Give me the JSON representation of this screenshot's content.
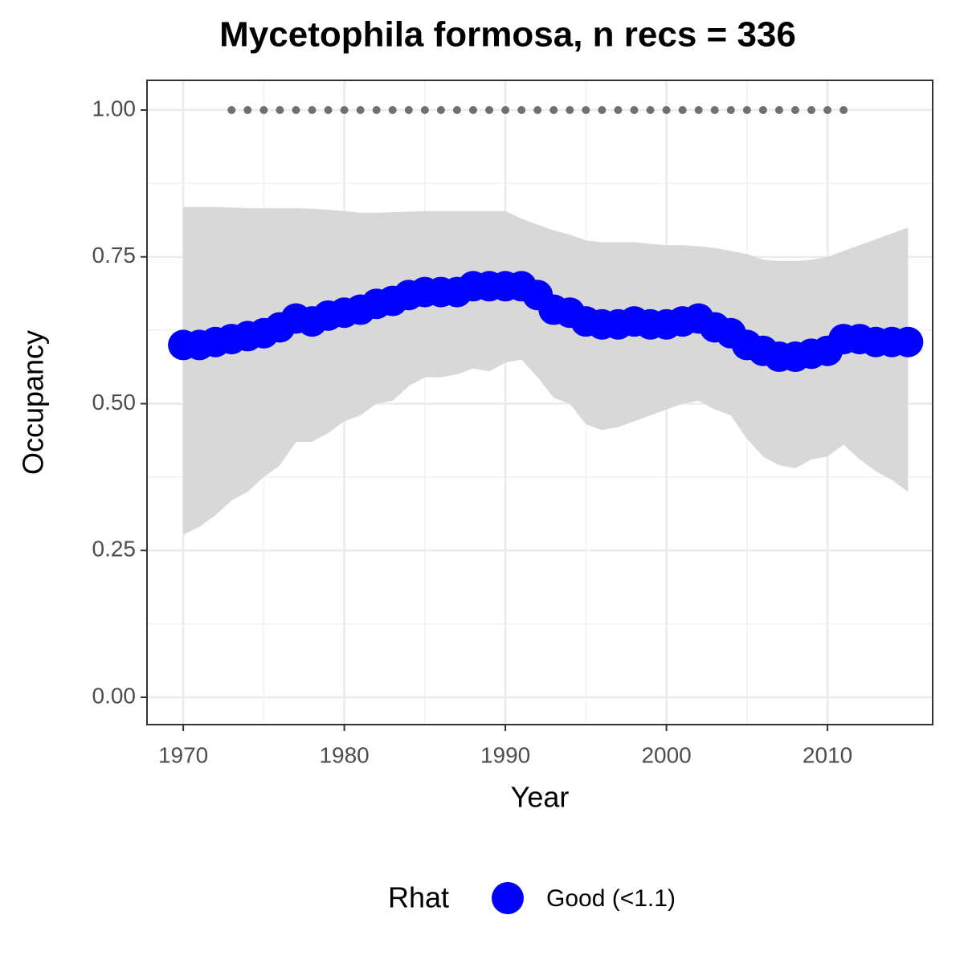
{
  "chart_data": {
    "type": "line",
    "title": "Mycetophila formosa, n recs = 336",
    "x_label": "Year",
    "y_label": "Occupancy",
    "legend_title": "Rhat",
    "x": [
      1970,
      1971,
      1972,
      1973,
      1974,
      1975,
      1976,
      1977,
      1978,
      1979,
      1980,
      1981,
      1982,
      1983,
      1984,
      1985,
      1986,
      1987,
      1988,
      1989,
      1990,
      1991,
      1992,
      1993,
      1994,
      1995,
      1996,
      1997,
      1998,
      1999,
      2000,
      2001,
      2002,
      2003,
      2004,
      2005,
      2006,
      2007,
      2008,
      2009,
      2010,
      2011,
      2012,
      2013,
      2014,
      2015
    ],
    "series": [
      {
        "name": "Good (<1.1)",
        "color": "#0000ff",
        "values": [
          0.6,
          0.6,
          0.605,
          0.61,
          0.615,
          0.62,
          0.63,
          0.645,
          0.64,
          0.65,
          0.655,
          0.66,
          0.67,
          0.675,
          0.685,
          0.69,
          0.69,
          0.69,
          0.7,
          0.7,
          0.7,
          0.7,
          0.685,
          0.66,
          0.655,
          0.64,
          0.635,
          0.635,
          0.64,
          0.635,
          0.635,
          0.64,
          0.645,
          0.63,
          0.62,
          0.6,
          0.59,
          0.58,
          0.58,
          0.585,
          0.59,
          0.61,
          0.61,
          0.605,
          0.605,
          0.605
        ]
      }
    ],
    "band_color": "#d6d6d6",
    "band_upper": [
      0.835,
      0.835,
      0.835,
      0.834,
      0.833,
      0.833,
      0.833,
      0.833,
      0.832,
      0.83,
      0.828,
      0.825,
      0.825,
      0.826,
      0.827,
      0.828,
      0.828,
      0.828,
      0.828,
      0.828,
      0.828,
      0.815,
      0.805,
      0.795,
      0.788,
      0.778,
      0.775,
      0.775,
      0.775,
      0.772,
      0.77,
      0.77,
      0.768,
      0.765,
      0.76,
      0.755,
      0.745,
      0.743,
      0.743,
      0.745,
      0.75,
      0.76,
      0.77,
      0.78,
      0.79,
      0.8
    ],
    "band_lower": [
      0.277,
      0.29,
      0.31,
      0.335,
      0.35,
      0.375,
      0.395,
      0.435,
      0.435,
      0.45,
      0.47,
      0.48,
      0.5,
      0.505,
      0.53,
      0.545,
      0.545,
      0.55,
      0.56,
      0.555,
      0.57,
      0.575,
      0.545,
      0.51,
      0.5,
      0.465,
      0.455,
      0.46,
      0.47,
      0.48,
      0.49,
      0.5,
      0.505,
      0.49,
      0.48,
      0.44,
      0.41,
      0.395,
      0.39,
      0.405,
      0.41,
      0.43,
      0.405,
      0.385,
      0.37,
      0.35
    ],
    "records": {
      "color": "#707070",
      "x": [
        1973,
        1974,
        1975,
        1976,
        1977,
        1978,
        1979,
        1980,
        1981,
        1982,
        1983,
        1984,
        1985,
        1986,
        1987,
        1988,
        1989,
        1990,
        1991,
        1992,
        1993,
        1994,
        1995,
        1996,
        1997,
        1998,
        1999,
        2000,
        2001,
        2002,
        2003,
        2004,
        2005,
        2006,
        2007,
        2008,
        2009,
        2010,
        2011
      ],
      "values": [
        1,
        1,
        1,
        1,
        1,
        1,
        1,
        1,
        1,
        1,
        1,
        1,
        1,
        1,
        1,
        1,
        1,
        1,
        1,
        1,
        1,
        1,
        1,
        1,
        1,
        1,
        1,
        1,
        1,
        1,
        1,
        1,
        1,
        1,
        1,
        1,
        1,
        1,
        1
      ]
    },
    "xlim": [
      1967.75,
      2016.53
    ],
    "xticks": [
      1970,
      1980,
      1990,
      2000,
      2010
    ],
    "ylim": [
      -0.0465,
      1.0506
    ],
    "yticks": [
      {
        "value": 0,
        "label": "0.00"
      },
      {
        "value": 0.25,
        "label": "0.25"
      },
      {
        "value": 0.5,
        "label": "0.50"
      },
      {
        "value": 0.75,
        "label": "0.75"
      },
      {
        "value": 1,
        "label": "1.00"
      }
    ],
    "grid": true,
    "legend_position": "bottom"
  }
}
